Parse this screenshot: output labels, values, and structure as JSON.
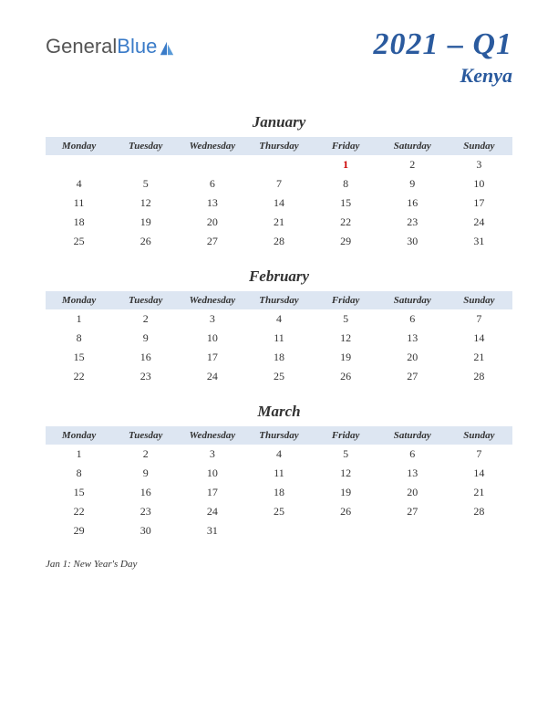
{
  "logo": {
    "text1": "General",
    "text2": "Blue"
  },
  "title": {
    "main": "2021 – Q1",
    "sub": "Kenya"
  },
  "colors": {
    "header_text": "#2a5a9e",
    "th_bg": "#dde6f2",
    "holiday": "#cc0000",
    "logo_blue": "#3a7bc8"
  },
  "day_headers": [
    "Monday",
    "Tuesday",
    "Wednesday",
    "Thursday",
    "Friday",
    "Saturday",
    "Sunday"
  ],
  "months": [
    {
      "name": "January",
      "weeks": [
        [
          "",
          "",
          "",
          "",
          "1",
          "2",
          "3"
        ],
        [
          "4",
          "5",
          "6",
          "7",
          "8",
          "9",
          "10"
        ],
        [
          "11",
          "12",
          "13",
          "14",
          "15",
          "16",
          "17"
        ],
        [
          "18",
          "19",
          "20",
          "21",
          "22",
          "23",
          "24"
        ],
        [
          "25",
          "26",
          "27",
          "28",
          "29",
          "30",
          "31"
        ]
      ],
      "holidays": [
        [
          0,
          4
        ]
      ]
    },
    {
      "name": "February",
      "weeks": [
        [
          "1",
          "2",
          "3",
          "4",
          "5",
          "6",
          "7"
        ],
        [
          "8",
          "9",
          "10",
          "11",
          "12",
          "13",
          "14"
        ],
        [
          "15",
          "16",
          "17",
          "18",
          "19",
          "20",
          "21"
        ],
        [
          "22",
          "23",
          "24",
          "25",
          "26",
          "27",
          "28"
        ]
      ],
      "holidays": []
    },
    {
      "name": "March",
      "weeks": [
        [
          "1",
          "2",
          "3",
          "4",
          "5",
          "6",
          "7"
        ],
        [
          "8",
          "9",
          "10",
          "11",
          "12",
          "13",
          "14"
        ],
        [
          "15",
          "16",
          "17",
          "18",
          "19",
          "20",
          "21"
        ],
        [
          "22",
          "23",
          "24",
          "25",
          "26",
          "27",
          "28"
        ],
        [
          "29",
          "30",
          "31",
          "",
          "",
          "",
          ""
        ]
      ],
      "holidays": []
    }
  ],
  "holiday_note": "Jan 1: New Year's Day"
}
